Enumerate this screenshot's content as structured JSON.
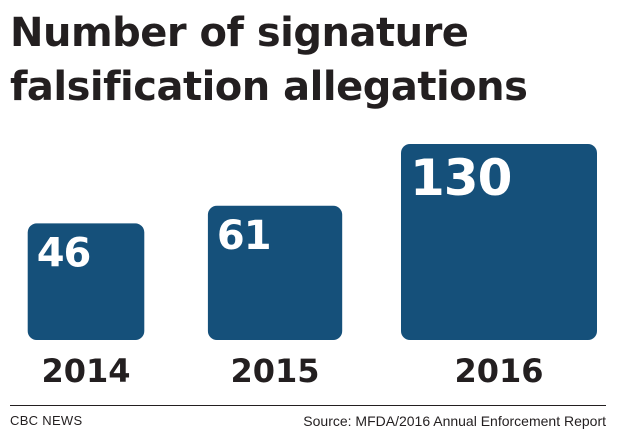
{
  "title_lines": [
    "Number of signature",
    "falsification allegations"
  ],
  "footer": {
    "brand": "CBC NEWS",
    "source": "Source: MFDA/2016 Annual Enforcement Report"
  },
  "colors": {
    "bar": "#15507a",
    "bar_label": "#ffffff",
    "text": "#231f20"
  },
  "chart_data": {
    "type": "bar",
    "title": "Number of signature falsification allegations",
    "categories": [
      "2014",
      "2015",
      "2016"
    ],
    "values": [
      46,
      61,
      130
    ],
    "xlabel": "",
    "ylabel": "",
    "grid": false,
    "legend": "none"
  }
}
